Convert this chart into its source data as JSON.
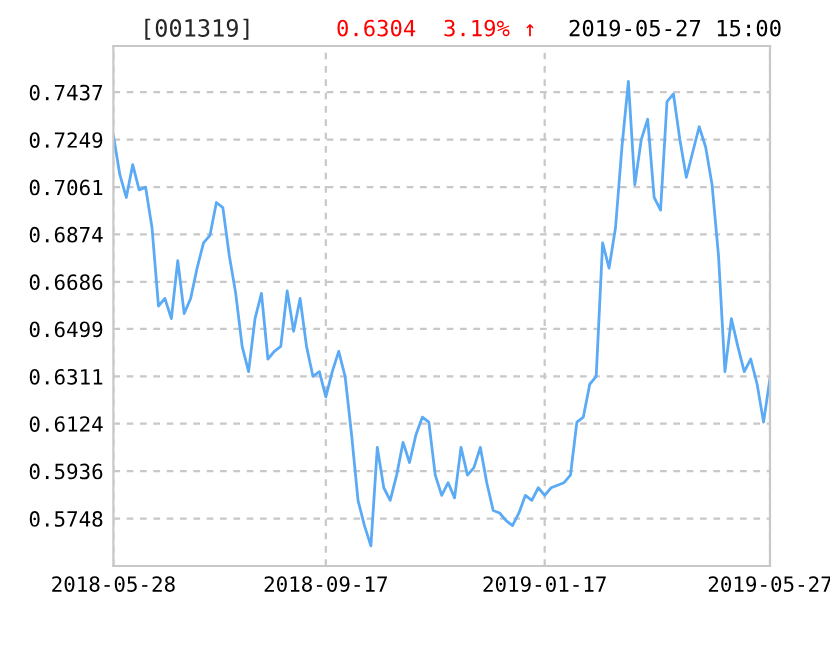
{
  "chart_data": {
    "type": "line",
    "title": "[001319]",
    "annotations": [
      "0.6304  3.19% ↑",
      "2019-05-27 15:00"
    ],
    "categories": [
      "2018-05-28",
      null,
      null,
      null,
      null,
      null,
      null,
      null,
      null,
      null,
      null,
      null,
      null,
      null,
      null,
      null,
      null,
      null,
      null,
      null,
      null,
      null,
      null,
      null,
      null,
      null,
      null,
      null,
      null,
      null,
      null,
      null,
      null,
      "2018-09-17",
      null,
      null,
      null,
      null,
      null,
      null,
      null,
      null,
      null,
      null,
      null,
      null,
      null,
      null,
      null,
      null,
      null,
      null,
      null,
      null,
      null,
      null,
      null,
      null,
      null,
      null,
      null,
      null,
      null,
      null,
      null,
      null,
      null,
      "2019-01-17",
      null,
      null,
      null,
      null,
      null,
      null,
      null,
      null,
      null,
      null,
      null,
      null,
      null,
      null,
      null,
      null,
      null,
      null,
      null,
      null,
      null,
      null,
      null,
      null,
      null,
      null,
      null,
      null,
      null,
      null,
      null,
      null,
      null,
      null,
      "2019-05-27"
    ],
    "series": [
      {
        "color": "#5aaaf5",
        "values": [
          0.7266,
          0.711,
          0.702,
          0.715,
          0.705,
          0.7061,
          0.69,
          0.659,
          0.662,
          0.654,
          0.677,
          0.656,
          0.662,
          0.674,
          0.684,
          0.687,
          0.7,
          0.698,
          0.679,
          0.664,
          0.643,
          0.633,
          0.654,
          0.664,
          0.638,
          0.641,
          0.643,
          0.665,
          0.649,
          0.662,
          0.643,
          0.6311,
          0.633,
          0.623,
          0.633,
          0.641,
          0.631,
          0.608,
          0.582,
          0.572,
          0.564,
          0.603,
          0.587,
          0.582,
          0.592,
          0.605,
          0.597,
          0.608,
          0.615,
          0.613,
          0.592,
          0.584,
          0.589,
          0.583,
          0.603,
          0.592,
          0.595,
          0.603,
          0.589,
          0.578,
          0.577,
          0.574,
          0.572,
          0.577,
          0.584,
          0.582,
          0.587,
          0.584,
          0.587,
          0.588,
          0.589,
          0.592,
          0.613,
          0.615,
          0.628,
          0.6311,
          0.684,
          0.674,
          0.69,
          0.722,
          0.748,
          0.707,
          0.7249,
          0.733,
          0.702,
          0.697,
          0.74,
          0.743,
          0.7249,
          0.71,
          0.72,
          0.73,
          0.722,
          0.707,
          0.679,
          0.633,
          0.654,
          0.643,
          0.633,
          0.638,
          0.628,
          0.613,
          0.6304
        ]
      }
    ],
    "ylim": [
      0.556,
      0.762
    ],
    "yticks": [
      0.5748,
      0.5936,
      0.6124,
      0.6311,
      0.6499,
      0.6686,
      0.6874,
      0.7061,
      0.7249,
      0.7437
    ],
    "grid": true,
    "legend": false,
    "line_style": "solid",
    "marker": "none"
  }
}
